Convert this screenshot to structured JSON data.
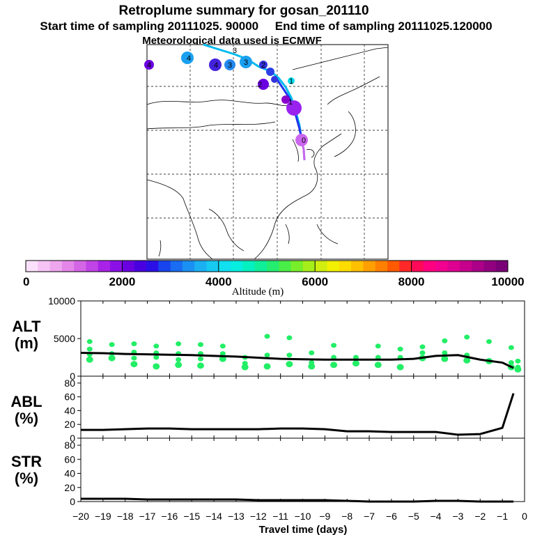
{
  "header": {
    "title": "Retroplume summary for gosan_201110",
    "sampling_line": "Start time of sampling 20111025. 90000     End time of sampling 20111025.120000",
    "met_line": "Meteorological data used is ECMWF"
  },
  "map": {
    "track_labels": [
      "0",
      "1",
      "1",
      "2",
      "2",
      "3",
      "3",
      "3",
      "4",
      "4",
      "4"
    ]
  },
  "colorbar": {
    "title": "Altitude (m)",
    "ticks": [
      "0",
      "2000",
      "4000",
      "6000",
      "8000",
      "10000"
    ],
    "min": 0,
    "max": 10000
  },
  "colors": {
    "line": "#000000",
    "points": "#22ee66",
    "track_light": "#00bbee",
    "track_dark": "#2233ee",
    "track_source": "#cc66ee"
  },
  "chart_data": [
    {
      "type": "line",
      "panel": "ALT",
      "ylabel": "ALT (m)",
      "ylabel_line1": "ALT",
      "ylabel_line2": "(m)",
      "ylim": [
        0,
        10000
      ],
      "yticks": [
        "0",
        "5000",
        "10000"
      ],
      "ytick_values": [
        0,
        5000,
        10000
      ],
      "x": [
        -20,
        -19,
        -18,
        -17,
        -16,
        -15,
        -14,
        -13,
        -12,
        -11,
        -10,
        -9,
        -8,
        -7,
        -6,
        -5,
        -4,
        -3,
        -2,
        -1,
        -0.5
      ],
      "values": [
        3100,
        3050,
        2950,
        2900,
        2850,
        2800,
        2700,
        2600,
        2450,
        2300,
        2250,
        2200,
        2200,
        2200,
        2200,
        2300,
        2700,
        2800,
        2200,
        1800,
        1100
      ],
      "scatter": [
        {
          "x": -19.6,
          "ys": [
            4600,
            3600,
            2900,
            2200
          ]
        },
        {
          "x": -18.6,
          "ys": [
            4200,
            3000,
            2400
          ]
        },
        {
          "x": -17.6,
          "ys": [
            4300,
            3200,
            2400,
            1600
          ]
        },
        {
          "x": -16.6,
          "ys": [
            4000,
            3100,
            2500,
            1300
          ]
        },
        {
          "x": -15.6,
          "ys": [
            4300,
            3000,
            2200,
            1500
          ]
        },
        {
          "x": -14.6,
          "ys": [
            4200,
            3000,
            2300,
            1400
          ]
        },
        {
          "x": -13.6,
          "ys": [
            4000,
            3000,
            2300
          ]
        },
        {
          "x": -12.6,
          "ys": [
            2500,
            1700,
            1200
          ]
        },
        {
          "x": -11.6,
          "ys": [
            5300,
            2800,
            1300
          ]
        },
        {
          "x": -10.6,
          "ys": [
            5100,
            2800,
            1600
          ]
        },
        {
          "x": -9.6,
          "ys": [
            3100,
            1800,
            1300
          ]
        },
        {
          "x": -8.6,
          "ys": [
            4100,
            2500,
            1500
          ]
        },
        {
          "x": -7.6,
          "ys": [
            2500,
            1700
          ]
        },
        {
          "x": -6.6,
          "ys": [
            4000,
            2500,
            1500
          ]
        },
        {
          "x": -5.6,
          "ys": [
            3600,
            2500,
            1200
          ]
        },
        {
          "x": -4.6,
          "ys": [
            3900,
            3100,
            2400
          ]
        },
        {
          "x": -3.6,
          "ys": [
            4700,
            3100,
            2300
          ]
        },
        {
          "x": -2.6,
          "ys": [
            5200,
            2800,
            2100
          ]
        },
        {
          "x": -1.6,
          "ys": [
            4600,
            2000
          ]
        },
        {
          "x": -0.6,
          "ys": [
            3800,
            1800,
            1200
          ]
        },
        {
          "x": -0.3,
          "ys": [
            2000,
            1200,
            900
          ]
        }
      ]
    },
    {
      "type": "line",
      "panel": "ABL",
      "ylabel": "ABL (%)",
      "ylabel_line1": "ABL",
      "ylabel_line2": "(%)",
      "ylim": [
        0,
        90
      ],
      "yticks": [
        "0",
        "20",
        "40",
        "60",
        "80"
      ],
      "ytick_values": [
        0,
        20,
        40,
        60,
        80
      ],
      "x": [
        -20,
        -19,
        -18,
        -17,
        -16,
        -15,
        -14,
        -13,
        -12,
        -11,
        -10,
        -9,
        -8,
        -7,
        -6,
        -5,
        -4,
        -3,
        -2,
        -1,
        -0.5
      ],
      "values": [
        12,
        12,
        13,
        14,
        14,
        13,
        13,
        13,
        13,
        14,
        14,
        13,
        10,
        10,
        9,
        9,
        9,
        5,
        6,
        15,
        65
      ]
    },
    {
      "type": "line",
      "panel": "STR",
      "ylabel": "STR (%)",
      "ylabel_line1": "STR",
      "ylabel_line2": "(%)",
      "ylim": [
        0,
        90
      ],
      "yticks": [
        "0",
        "20",
        "40",
        "60",
        "80"
      ],
      "ytick_values": [
        0,
        20,
        40,
        60,
        80
      ],
      "x": [
        -20,
        -19,
        -18,
        -17,
        -16,
        -15,
        -14,
        -13,
        -12,
        -11,
        -10,
        -9,
        -8,
        -7,
        -6,
        -5,
        -4,
        -3,
        -2,
        -1,
        -0.5
      ],
      "values": [
        4,
        4,
        4,
        3,
        3,
        3,
        3,
        3,
        2,
        2,
        2,
        2,
        1,
        0,
        0,
        0,
        1,
        1,
        0,
        0,
        0
      ]
    }
  ],
  "xaxis": {
    "label": "Travel time (days)",
    "ticks": [
      "−20",
      "−19",
      "−18",
      "−17",
      "−16",
      "−15",
      "−14",
      "−13",
      "−12",
      "−11",
      "−10",
      "−9",
      "−8",
      "−7",
      "−6",
      "−5",
      "−4",
      "−3",
      "−2",
      "−1",
      "0"
    ],
    "tick_values": [
      -20,
      -19,
      -18,
      -17,
      -16,
      -15,
      -14,
      -13,
      -12,
      -11,
      -10,
      -9,
      -8,
      -7,
      -6,
      -5,
      -4,
      -3,
      -2,
      -1,
      0
    ],
    "xlim": [
      -20,
      0
    ]
  }
}
